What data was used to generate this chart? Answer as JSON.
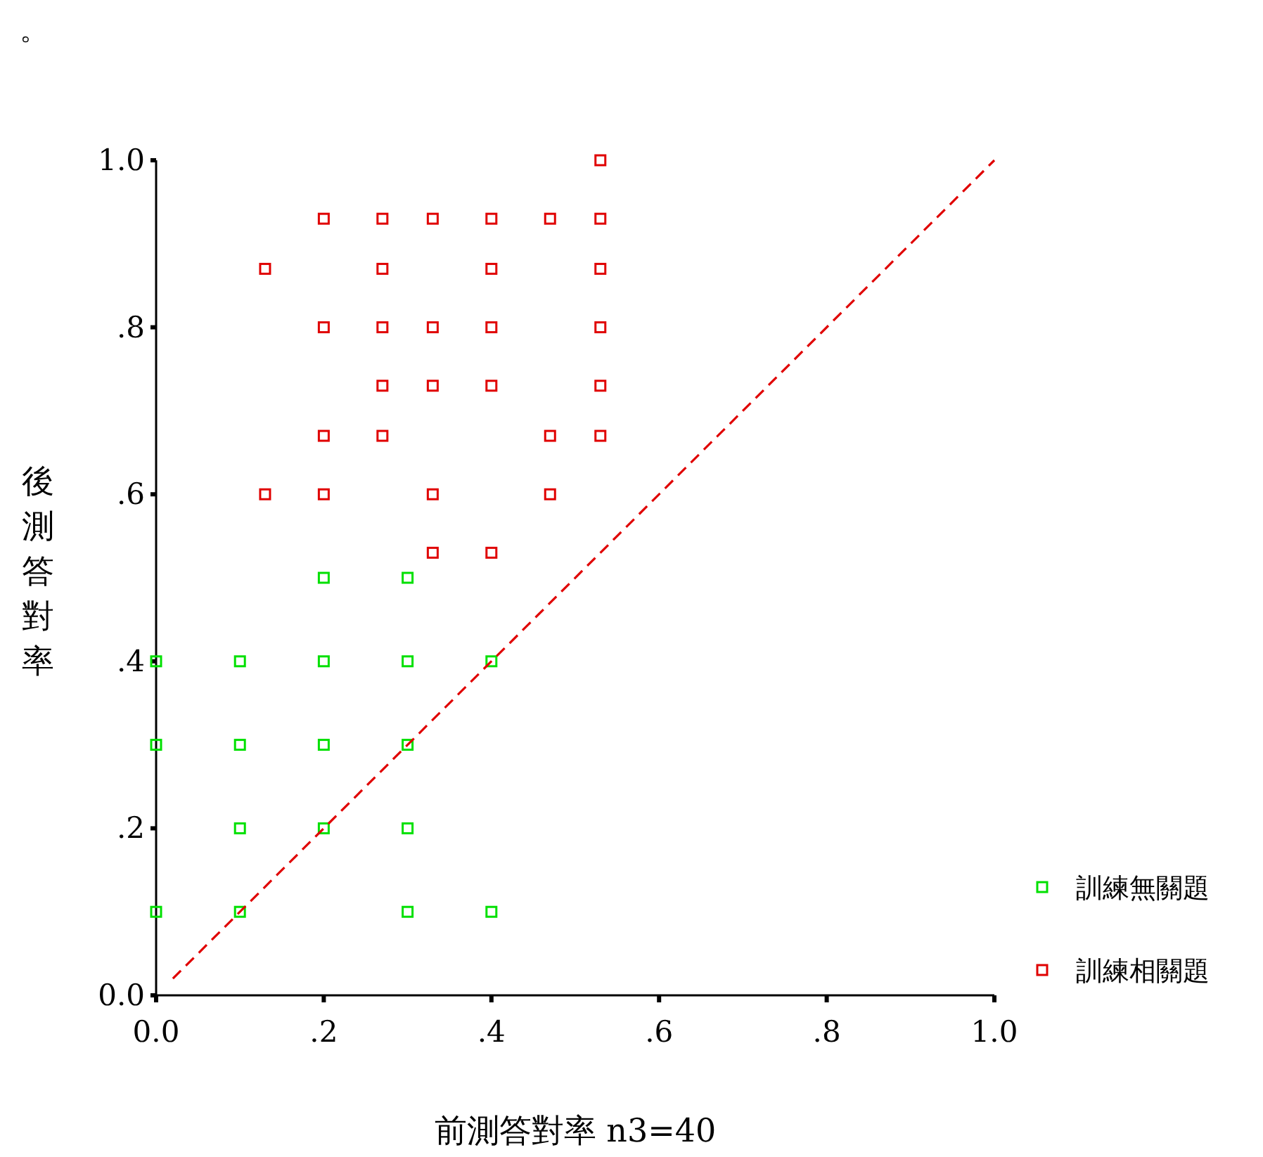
{
  "chart_data": {
    "type": "scatter",
    "xlabel": "前測答對率 n3=40",
    "ylabel": "後測答對率",
    "annotations": [
      "。"
    ],
    "xlim": [
      0,
      1
    ],
    "ylim": [
      0,
      1
    ],
    "xticks": [
      {
        "value": 0,
        "label": "0.0"
      },
      {
        "value": 0.2,
        "label": ".2"
      },
      {
        "value": 0.4,
        "label": ".4"
      },
      {
        "value": 0.6,
        "label": ".6"
      },
      {
        "value": 0.8,
        "label": ".8"
      },
      {
        "value": 1,
        "label": "1.0"
      }
    ],
    "yticks": [
      {
        "value": 0,
        "label": "0.0"
      },
      {
        "value": 0.2,
        "label": ".2"
      },
      {
        "value": 0.4,
        "label": ".4"
      },
      {
        "value": 0.6,
        "label": ".6"
      },
      {
        "value": 0.8,
        "label": ".8"
      },
      {
        "value": 1,
        "label": "1.0"
      }
    ],
    "grid": false,
    "legend": "bottom right",
    "marker": "square",
    "series": [
      {
        "name": "訓練無關題",
        "color": "#00e000",
        "x": [
          0,
          0,
          0,
          0.1,
          0.1,
          0.1,
          0.1,
          0.2,
          0.2,
          0.2,
          0.2,
          0.3,
          0.3,
          0.3,
          0.3,
          0.3,
          0.4,
          0.4
        ],
        "values": [
          0.1,
          0.3,
          0.4,
          0.1,
          0.2,
          0.3,
          0.4,
          0.2,
          0.3,
          0.4,
          0.5,
          0.1,
          0.2,
          0.3,
          0.4,
          0.5,
          0.1,
          0.4
        ]
      },
      {
        "name": "訓練相關題",
        "color": "#e00000",
        "x": [
          0.53,
          0.2,
          0.27,
          0.33,
          0.4,
          0.47,
          0.53,
          0.13,
          0.27,
          0.4,
          0.53,
          0.2,
          0.27,
          0.33,
          0.4,
          0.53,
          0.27,
          0.33,
          0.4,
          0.53,
          0.2,
          0.27,
          0.47,
          0.53,
          0.13,
          0.2,
          0.33,
          0.47,
          0.33,
          0.4
        ],
        "values": [
          1.0,
          0.93,
          0.93,
          0.93,
          0.93,
          0.93,
          0.93,
          0.87,
          0.87,
          0.87,
          0.87,
          0.8,
          0.8,
          0.8,
          0.8,
          0.8,
          0.73,
          0.73,
          0.73,
          0.73,
          0.67,
          0.67,
          0.67,
          0.67,
          0.6,
          0.6,
          0.6,
          0.6,
          0.53,
          0.53
        ]
      },
      {
        "type": "line",
        "color": "#e00000",
        "line_style": "dashed",
        "marker": "none",
        "x": [
          0.02,
          1
        ],
        "values": [
          0.02,
          1
        ]
      }
    ]
  }
}
